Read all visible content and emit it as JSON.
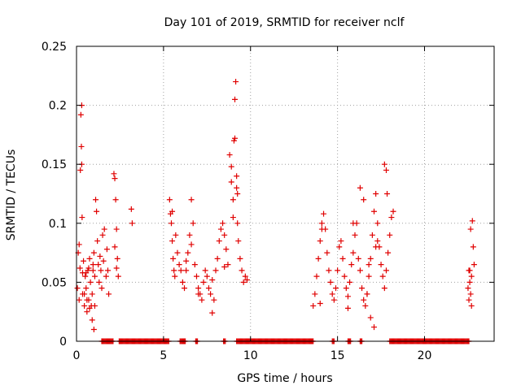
{
  "chart_data": {
    "type": "scatter",
    "title": "Day 101 of 2019, SRMTID for receiver nclf",
    "xlabel": "GPS time / hours",
    "ylabel": "SRMTID / TECUs",
    "xlim": [
      0,
      24
    ],
    "ylim": [
      0,
      0.25
    ],
    "xticks": [
      0,
      5,
      10,
      15,
      20
    ],
    "xtick_labels": [
      "0",
      "5",
      "10",
      "15",
      "20"
    ],
    "yticks": [
      0,
      0.05,
      0.1,
      0.15,
      0.2,
      0.25
    ],
    "ytick_labels": [
      "0",
      "0.05",
      "0.1",
      "0.15",
      "0.2",
      "0.25"
    ],
    "grid": true,
    "marker": "+",
    "color": "#e00000",
    "series": [
      {
        "name": "SRMTID",
        "x": [
          0.05,
          0.1,
          0.15,
          0.2,
          0.22,
          0.25,
          0.28,
          0.3,
          0.3,
          0.32,
          0.35,
          0.35,
          0.4,
          0.45,
          0.5,
          0.55,
          0.6,
          0.65,
          0.7,
          0.75,
          0.8,
          0.85,
          0.9,
          0.95,
          1.0,
          1.05,
          1.1,
          1.15,
          1.2,
          1.25,
          1.3,
          1.35,
          1.4,
          1.45,
          1.5,
          1.55,
          1.6,
          1.7,
          1.75,
          1.8,
          1.85,
          0.15,
          0.45,
          0.6,
          0.75,
          0.9,
          1.0,
          1.05,
          0.55,
          0.7,
          0.95,
          2.15,
          2.2,
          2.25,
          2.3,
          2.35,
          2.4,
          2.2,
          2.3,
          3.15,
          3.2,
          5.35,
          5.4,
          5.45,
          5.5,
          5.55,
          5.6,
          5.65,
          5.7,
          5.8,
          5.9,
          6.0,
          6.1,
          6.2,
          6.3,
          6.4,
          6.5,
          6.6,
          6.7,
          6.8,
          6.9,
          7.0,
          7.1,
          7.2,
          7.3,
          7.4,
          7.5,
          7.6,
          7.7,
          7.8,
          7.9,
          8.0,
          8.1,
          8.2,
          8.3,
          8.4,
          8.5,
          8.6,
          8.7,
          8.8,
          8.9,
          9.0,
          9.05,
          9.1,
          9.15,
          9.2,
          9.25,
          9.3,
          9.4,
          9.5,
          9.6,
          9.7,
          9.8,
          6.6,
          5.5,
          7.8,
          8.5,
          9.1,
          9.2,
          9.25,
          8.9,
          9.0,
          6.3,
          7.0,
          13.6,
          13.7,
          13.8,
          13.9,
          14.0,
          14.1,
          14.2,
          14.3,
          14.4,
          14.5,
          14.6,
          14.7,
          14.8,
          14.9,
          15.0,
          15.1,
          15.2,
          15.3,
          15.4,
          15.5,
          15.6,
          15.7,
          15.8,
          15.9,
          16.0,
          16.1,
          16.2,
          16.3,
          16.4,
          16.5,
          16.6,
          16.7,
          16.8,
          16.9,
          17.0,
          17.1,
          17.2,
          17.3,
          17.4,
          17.5,
          17.6,
          17.7,
          17.8,
          17.9,
          18.0,
          18.1,
          18.2,
          14.0,
          14.1,
          15.6,
          15.9,
          16.3,
          16.5,
          16.7,
          16.9,
          17.1,
          17.3,
          17.7,
          17.8,
          17.85,
          16.8,
          17.2,
          22.5,
          22.55,
          22.6,
          22.65,
          22.7,
          22.75,
          22.8,
          22.85,
          22.6,
          22.65,
          22.7,
          22.55
        ],
        "y": [
          0.045,
          0.075,
          0.035,
          0.062,
          0.145,
          0.192,
          0.165,
          0.2,
          0.15,
          0.105,
          0.058,
          0.04,
          0.068,
          0.03,
          0.055,
          0.045,
          0.025,
          0.06,
          0.035,
          0.07,
          0.05,
          0.03,
          0.04,
          0.06,
          0.075,
          0.055,
          0.12,
          0.11,
          0.085,
          0.065,
          0.05,
          0.072,
          0.06,
          0.045,
          0.09,
          0.068,
          0.095,
          0.055,
          0.078,
          0.06,
          0.04,
          0.082,
          0.04,
          0.035,
          0.028,
          0.018,
          0.01,
          0.03,
          0.058,
          0.062,
          0.065,
          0.142,
          0.138,
          0.12,
          0.095,
          0.07,
          0.055,
          0.08,
          0.062,
          0.112,
          0.1,
          0.12,
          0.108,
          0.1,
          0.085,
          0.07,
          0.06,
          0.055,
          0.09,
          0.075,
          0.065,
          0.06,
          0.05,
          0.045,
          0.068,
          0.075,
          0.09,
          0.082,
          0.1,
          0.065,
          0.055,
          0.045,
          0.04,
          0.035,
          0.05,
          0.06,
          0.055,
          0.045,
          0.04,
          0.052,
          0.035,
          0.06,
          0.07,
          0.085,
          0.095,
          0.1,
          0.09,
          0.078,
          0.065,
          0.158,
          0.148,
          0.12,
          0.17,
          0.205,
          0.22,
          0.13,
          0.1,
          0.085,
          0.07,
          0.06,
          0.05,
          0.055,
          0.052,
          0.12,
          0.11,
          0.024,
          0.063,
          0.172,
          0.14,
          0.125,
          0.135,
          0.105,
          0.06,
          0.04,
          0.03,
          0.04,
          0.055,
          0.07,
          0.085,
          0.1,
          0.108,
          0.095,
          0.075,
          0.06,
          0.05,
          0.04,
          0.035,
          0.045,
          0.06,
          0.08,
          0.085,
          0.07,
          0.055,
          0.045,
          0.038,
          0.05,
          0.065,
          0.075,
          0.09,
          0.1,
          0.07,
          0.06,
          0.045,
          0.035,
          0.03,
          0.04,
          0.055,
          0.07,
          0.09,
          0.11,
          0.125,
          0.1,
          0.08,
          0.065,
          0.055,
          0.045,
          0.06,
          0.075,
          0.09,
          0.105,
          0.11,
          0.032,
          0.095,
          0.028,
          0.1,
          0.13,
          0.12,
          0.04,
          0.02,
          0.012,
          0.085,
          0.15,
          0.145,
          0.125,
          0.065,
          0.08,
          0.045,
          0.06,
          0.05,
          0.04,
          0.03,
          0.102,
          0.08,
          0.065,
          0.06,
          0.095,
          0.055,
          0.035
        ],
        "zero_band_intervals_hours": [
          [
            1.45,
            2.1
          ],
          [
            2.45,
            5.3
          ],
          [
            5.95,
            6.25
          ],
          [
            6.85,
            6.95
          ],
          [
            8.45,
            8.55
          ],
          [
            9.2,
            13.6
          ],
          [
            14.7,
            14.8
          ],
          [
            15.6,
            15.75
          ],
          [
            16.3,
            16.4
          ],
          [
            18.0,
            22.55
          ]
        ]
      }
    ]
  }
}
